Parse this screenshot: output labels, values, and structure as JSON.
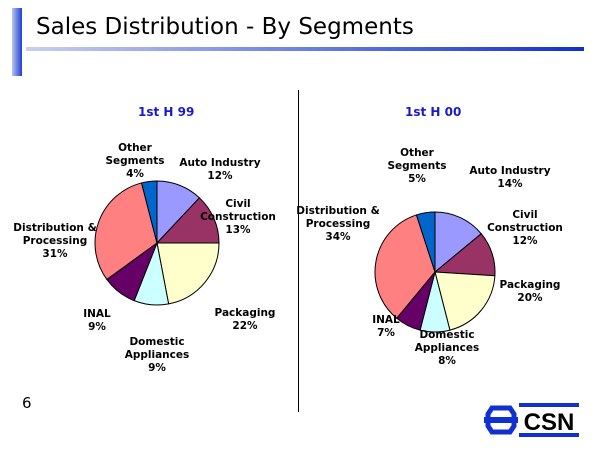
{
  "title": "Sales Distribution - By Segments",
  "page_number": "6",
  "logo_text": "CSN",
  "chart_data": [
    {
      "type": "pie",
      "title": "1st H 99",
      "categories": [
        "Auto Industry",
        "Civil Construction",
        "Packaging",
        "Domestic Appliances",
        "INAL",
        "Distribution & Processing",
        "Other Segments"
      ],
      "values": [
        12,
        13,
        22,
        9,
        9,
        31,
        4
      ],
      "labels": [
        "12%",
        "13%",
        "22%",
        "9%",
        "9%",
        "31%",
        "4%"
      ],
      "colors": [
        "#9999FF",
        "#993366",
        "#FFFFCC",
        "#CCFFFF",
        "#660066",
        "#FF8080",
        "#0066CC"
      ]
    },
    {
      "type": "pie",
      "title": "1st H 00",
      "categories": [
        "Auto Industry",
        "Civil Construction",
        "Packaging",
        "Domestic Appliances",
        "INAL",
        "Distribution & Processing",
        "Other Segments"
      ],
      "values": [
        14,
        12,
        20,
        8,
        7,
        34,
        5
      ],
      "labels": [
        "14%",
        "12%",
        "20%",
        "8%",
        "7%",
        "34%",
        "5%"
      ],
      "colors": [
        "#9999FF",
        "#993366",
        "#FFFFCC",
        "#CCFFFF",
        "#660066",
        "#FF8080",
        "#0066CC"
      ]
    }
  ]
}
